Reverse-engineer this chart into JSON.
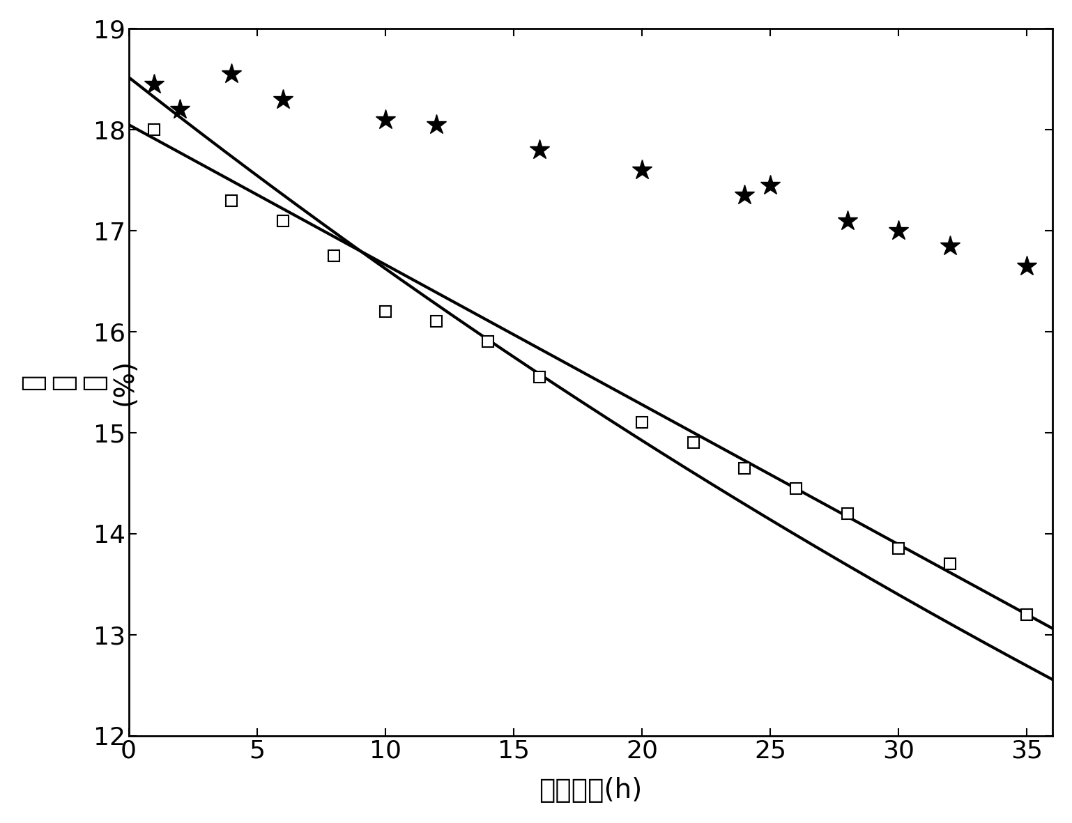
{
  "star_x": [
    1,
    2,
    4,
    6,
    10,
    12,
    16,
    20,
    24,
    25,
    28,
    30,
    32,
    35
  ],
  "star_y": [
    18.45,
    18.2,
    18.55,
    18.3,
    18.1,
    18.05,
    17.8,
    17.6,
    17.35,
    17.45,
    17.1,
    17.0,
    16.85,
    16.65
  ],
  "square_x": [
    1,
    4,
    6,
    8,
    10,
    12,
    14,
    16,
    20,
    22,
    24,
    26,
    28,
    30,
    32,
    35
  ],
  "square_y": [
    18.0,
    17.3,
    17.1,
    16.75,
    16.2,
    16.1,
    15.9,
    15.55,
    15.1,
    14.9,
    14.65,
    14.45,
    14.2,
    13.85,
    13.7,
    13.2
  ],
  "xlim": [
    0,
    36
  ],
  "ylim": [
    12,
    19
  ],
  "xticks": [
    0,
    5,
    10,
    15,
    20,
    25,
    30,
    35
  ],
  "yticks": [
    12,
    13,
    14,
    15,
    16,
    17,
    18,
    19
  ],
  "xlabel": "时　间　(h)",
  "ylabel_chars": [
    "转",
    "化",
    "率",
    "(%)"
  ],
  "line_color": "#000000",
  "line_width": 3.0,
  "marker_size": 12,
  "bg_color": "#ffffff",
  "star_fit_a": 18.52,
  "star_fit_b": -0.0108,
  "square_fit_a": 18.05,
  "square_fit_b": -0.137
}
